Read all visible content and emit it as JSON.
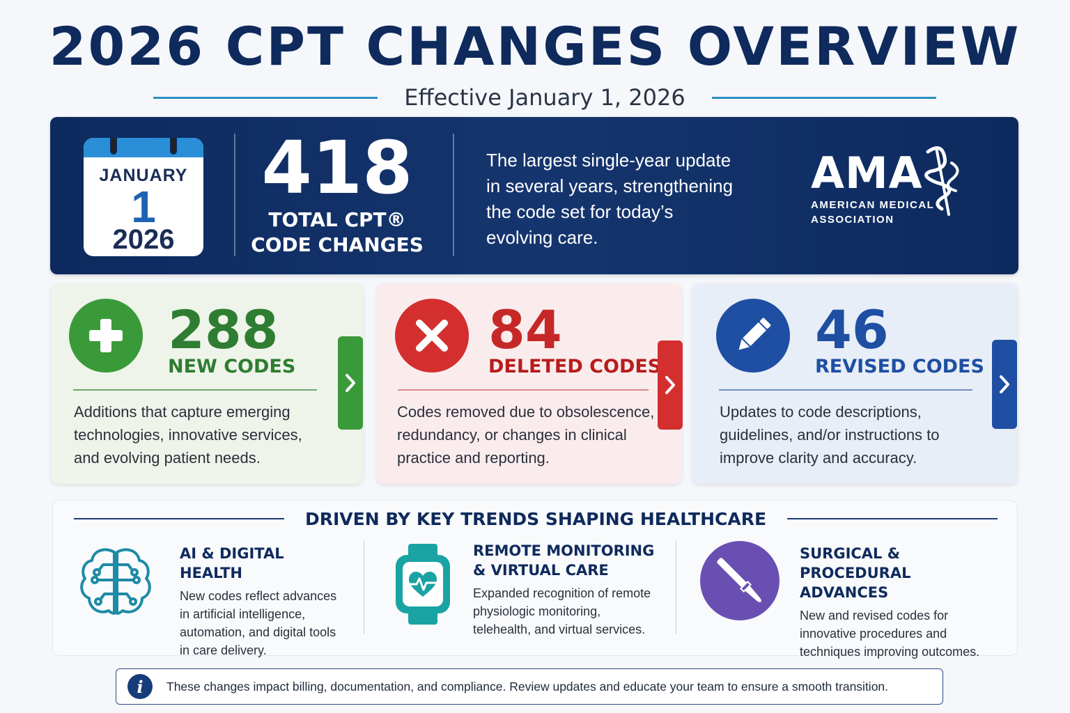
{
  "header": {
    "title": "2026 CPT CHANGES OVERVIEW",
    "subtitle": "Effective January 1, 2026"
  },
  "hero": {
    "calendar": {
      "month": "JANUARY",
      "day": "1",
      "year": "2026"
    },
    "total_number": "418",
    "total_label_line1": "TOTAL CPT®",
    "total_label_line2": "CODE CHANGES",
    "description": "The largest single-year update in several years, strengthening the code set for today’s evolving care.",
    "logo": {
      "text": "AMA",
      "sub_line1": "AMERICAN MEDICAL",
      "sub_line2": "ASSOCIATION"
    }
  },
  "cards": [
    {
      "number": "288",
      "label": "NEW CODES",
      "description": "Additions that capture emerging technologies, innovative services, and evolving patient needs.",
      "icon": "plus-icon",
      "color": "#3a9a3a"
    },
    {
      "number": "84",
      "label": "DELETED CODES",
      "description": "Codes removed due to obsolescence, redundancy, or changes in clinical practice and reporting.",
      "icon": "x-icon",
      "color": "#d32f2f"
    },
    {
      "number": "46",
      "label": "REVISED CODES",
      "description": "Updates to code descriptions, guidelines, and/or instructions to improve clarity and accuracy.",
      "icon": "pencil-icon",
      "color": "#1f4fa3"
    }
  ],
  "trends": {
    "title": "DRIVEN BY KEY TRENDS SHAPING HEALTHCARE",
    "items": [
      {
        "title_line1": "AI & DIGITAL HEALTH",
        "title_line2": "",
        "description": "New codes reflect advances in artificial intelligence, automation, and digital tools in care delivery.",
        "icon": "brain-circuit-icon"
      },
      {
        "title_line1": "REMOTE MONITORING",
        "title_line2": "& VIRTUAL CARE",
        "description": "Expanded recognition of remote physiologic monitoring, telehealth, and virtual services.",
        "icon": "smartwatch-heart-icon"
      },
      {
        "title_line1": "SURGICAL &",
        "title_line2": "PROCEDURAL ADVANCES",
        "description": "New and revised codes for innovative procedures and techniques improving outcomes.",
        "icon": "scalpel-icon"
      }
    ]
  },
  "notice": {
    "text": "These changes impact billing, documentation, and compliance. Review updates and educate your team to ensure a smooth transition.",
    "icon": "info-icon"
  }
}
